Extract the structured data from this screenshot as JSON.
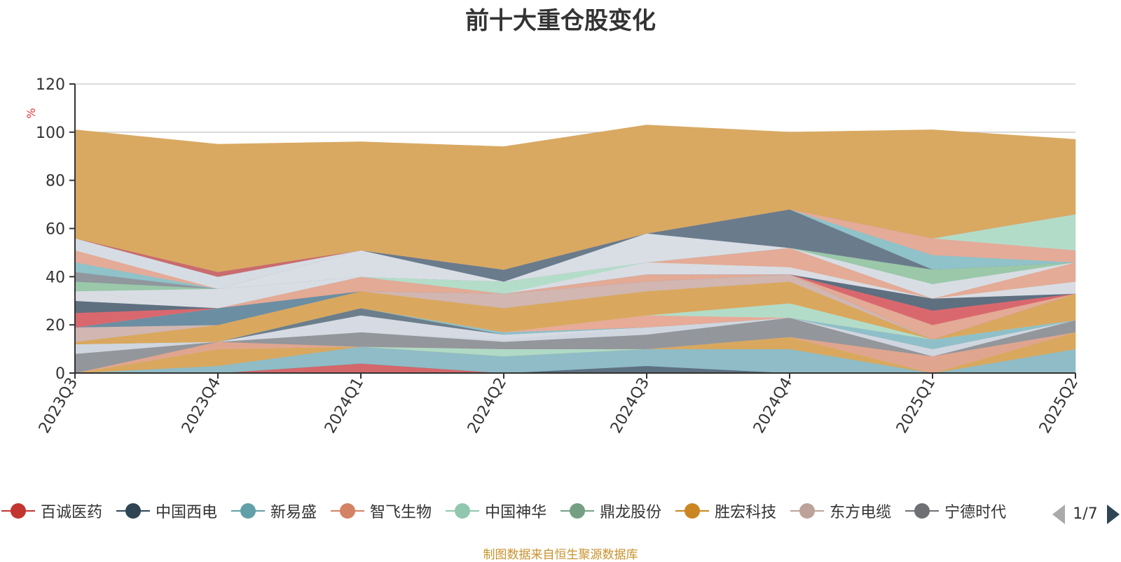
{
  "chart_data": {
    "type": "area",
    "title": "前十大重仓股变化",
    "ylabel": "%",
    "ylim": [
      0,
      120
    ],
    "yticks": [
      0,
      20,
      40,
      60,
      80,
      100,
      120
    ],
    "x": [
      "2023Q3",
      "2023Q4",
      "2024Q1",
      "2024Q2",
      "2024Q3",
      "2024Q4",
      "2025Q1",
      "2025Q2"
    ],
    "grid": true,
    "series": [
      {
        "values": [
          0,
          0,
          4,
          0,
          0,
          0,
          0,
          0
        ],
        "color": "#d4676a"
      },
      {
        "values": [
          0,
          0,
          0,
          0,
          3,
          0,
          0,
          0
        ],
        "color": "#5d7081"
      },
      {
        "values": [
          0,
          3,
          7,
          7,
          7,
          10,
          0,
          10
        ],
        "color": "#8fbcc6"
      },
      {
        "values": [
          0,
          7,
          0,
          0,
          0,
          5,
          0,
          7
        ],
        "color": "#d9a85e"
      },
      {
        "values": [
          0,
          0,
          0,
          3,
          0,
          0,
          0,
          0
        ],
        "color": "#b0dac6"
      },
      {
        "values": [
          0,
          3,
          0,
          0,
          0,
          0,
          7,
          0
        ],
        "color": "#e0a58f"
      },
      {
        "values": [
          8,
          0,
          6,
          3,
          6,
          8,
          0,
          5
        ],
        "color": "#93969b"
      },
      {
        "values": [
          4,
          0,
          0,
          1,
          3,
          0,
          3,
          0
        ],
        "color": "#d0d6df"
      },
      {
        "values": [
          0,
          0,
          7,
          2,
          0,
          0,
          0,
          0
        ],
        "color": "#d6dbe3"
      },
      {
        "values": [
          0,
          0,
          3,
          0,
          0,
          0,
          0,
          0
        ],
        "color": "#6c7e8c"
      },
      {
        "values": [
          0,
          0,
          0,
          1,
          0,
          0,
          4,
          0
        ],
        "color": "#8fc0c9"
      },
      {
        "values": [
          0,
          0,
          0,
          0,
          5,
          0,
          0,
          0
        ],
        "color": "#e7ab98"
      },
      {
        "values": [
          0,
          0,
          0,
          0,
          0,
          6,
          0,
          0
        ],
        "color": "#b3dcc8"
      },
      {
        "values": [
          1,
          7,
          7,
          10,
          10,
          9,
          0,
          11
        ],
        "color": "#d9a85e"
      },
      {
        "values": [
          6,
          0,
          0,
          6,
          4,
          3,
          0,
          0
        ],
        "color": "#d1b6b1"
      },
      {
        "values": [
          0,
          7,
          0,
          0,
          0,
          0,
          0,
          0
        ],
        "color": "#6b8ea3"
      },
      {
        "values": [
          0,
          0,
          6,
          0,
          3,
          0,
          6,
          0
        ],
        "color": "#e3aa95"
      },
      {
        "values": [
          6,
          0,
          0,
          0,
          0,
          0,
          6,
          0
        ],
        "color": "#d9686e"
      },
      {
        "values": [
          5,
          0,
          0,
          0,
          0,
          0,
          5,
          0
        ],
        "color": "#5e6f80"
      },
      {
        "values": [
          4,
          0,
          0,
          0,
          5,
          3,
          0,
          5
        ],
        "color": "#d9dde3"
      },
      {
        "values": [
          0,
          0,
          0,
          5,
          0,
          0,
          0,
          0
        ],
        "color": "#b4ddc9"
      },
      {
        "values": [
          0,
          0,
          0,
          0,
          0,
          8,
          0,
          8
        ],
        "color": "#e4ab97"
      },
      {
        "values": [
          0,
          8,
          0,
          0,
          0,
          0,
          6,
          0
        ],
        "color": "#d8dde4"
      },
      {
        "values": [
          4,
          0,
          0,
          0,
          0,
          0,
          6,
          0
        ],
        "color": "#9ac8a9"
      },
      {
        "values": [
          4,
          0,
          0,
          0,
          0,
          0,
          0,
          0
        ],
        "color": "#90979d"
      },
      {
        "values": [
          0,
          0,
          11,
          0,
          12,
          0,
          0,
          0
        ],
        "color": "#d9dee5"
      },
      {
        "values": [
          0,
          0,
          0,
          5,
          0,
          16,
          0,
          0
        ],
        "color": "#6a7b8c"
      },
      {
        "values": [
          4,
          0,
          0,
          0,
          0,
          0,
          6,
          0
        ],
        "color": "#8fc2c9"
      },
      {
        "values": [
          5,
          0,
          0,
          0,
          0,
          0,
          7,
          5
        ],
        "color": "#e3ab98"
      },
      {
        "values": [
          5,
          5,
          0,
          0,
          0,
          0,
          0,
          0
        ],
        "color": "#d6dce3"
      },
      {
        "values": [
          0,
          0,
          0,
          0,
          0,
          0,
          0,
          15
        ],
        "color": "#b3dcc8"
      },
      {
        "values": [
          0,
          2,
          0,
          0,
          0,
          0,
          0,
          0
        ],
        "color": "#c96b6f"
      },
      {
        "values": [
          45,
          53,
          45,
          51,
          45,
          32,
          45,
          31
        ],
        "color": "#d9a962"
      }
    ]
  },
  "legend": {
    "items": [
      {
        "label": "百诚医药",
        "color": "#c23531"
      },
      {
        "label": "中国西电",
        "color": "#2f4554"
      },
      {
        "label": "新易盛",
        "color": "#61a0a8"
      },
      {
        "label": "智飞生物",
        "color": "#d48265"
      },
      {
        "label": "中国神华",
        "color": "#91c7ae"
      },
      {
        "label": "鼎龙股份",
        "color": "#749f83"
      },
      {
        "label": "胜宏科技",
        "color": "#ca8622"
      },
      {
        "label": "东方电缆",
        "color": "#bda29a"
      },
      {
        "label": "宁德时代",
        "color": "#6e7074"
      }
    ],
    "page": "1/7"
  },
  "source": "制图数据来自恒生聚源数据库"
}
